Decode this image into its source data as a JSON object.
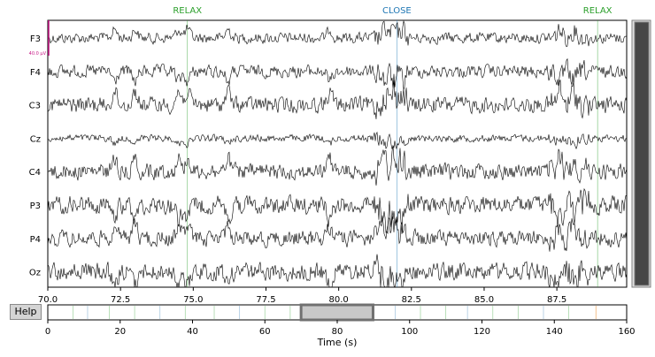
{
  "events": [
    {
      "label": "RELAX",
      "time": 74.8,
      "color": "#2ca02c"
    },
    {
      "label": "CLOSE",
      "time": 82.0,
      "color": "#1f77b4"
    },
    {
      "label": "RELAX",
      "time": 88.9,
      "color": "#2ca02c"
    }
  ],
  "channels": [
    "F3",
    "F4",
    "C3",
    "Cz",
    "C4",
    "P3",
    "P4",
    "Oz"
  ],
  "scale_bar": {
    "label": "40.0 µV",
    "color": "#c71585"
  },
  "view": {
    "start": 70.0,
    "end": 89.9
  },
  "time_ticks": [
    "70.0",
    "72.5",
    "75.0",
    "77.5",
    "80.0",
    "82.5",
    "85.0",
    "87.5"
  ],
  "help_label": "Help",
  "overview": {
    "ticks": [
      "0",
      "20",
      "40",
      "60",
      "80",
      "100",
      "120",
      "140",
      "160"
    ],
    "range": [
      0,
      160
    ],
    "xlabel": "Time (s)"
  },
  "vertical_scroll": {
    "fraction_visible": 1.0
  }
}
